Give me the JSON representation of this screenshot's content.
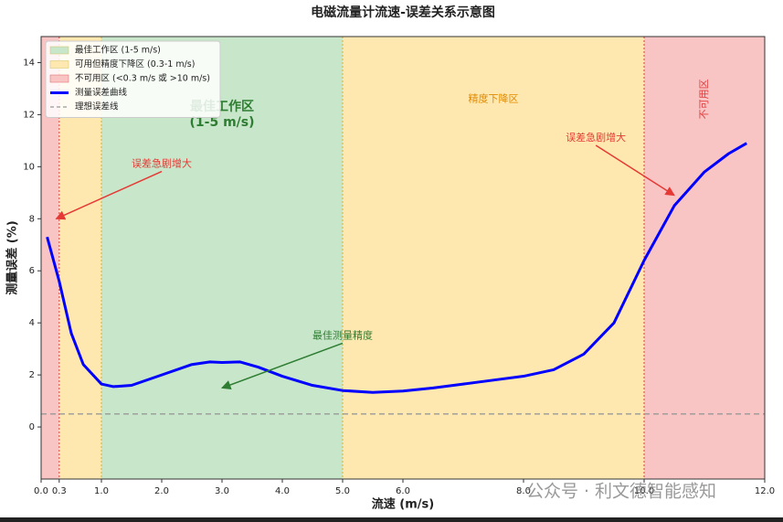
{
  "chart_data": {
    "type": "line",
    "title": "电磁流量计流速-误差关系示意图",
    "x_label": "流速 (m/s)",
    "y_label": "测量误差 (%)",
    "xlim": [
      0,
      12
    ],
    "ylim": [
      -2,
      15
    ],
    "xticks": [
      {
        "value": 0,
        "label": "0.0"
      },
      0.3,
      {
        "value": 1,
        "label": "1.0"
      },
      {
        "value": 2,
        "label": "2.0"
      },
      {
        "value": 3,
        "label": "3.0"
      },
      {
        "value": 4,
        "label": "4.0"
      },
      {
        "value": 5,
        "label": "5.0"
      },
      {
        "value": 6,
        "label": "6.0"
      },
      {
        "value": 8,
        "label": "8.0"
      },
      {
        "value": 10,
        "label": "10.0"
      },
      {
        "value": 12,
        "label": "12.0"
      }
    ],
    "yticks": [
      0,
      2,
      4,
      6,
      8,
      10,
      12,
      14
    ],
    "x": [
      0.1,
      0.3,
      0.5,
      0.7,
      1.0,
      1.2,
      1.5,
      2.0,
      2.5,
      2.8,
      3.0,
      3.3,
      3.6,
      4.0,
      4.5,
      5.0,
      5.5,
      6.0,
      6.5,
      7.0,
      7.5,
      8.0,
      8.5,
      9.0,
      9.5,
      10.0,
      10.5,
      11.0,
      11.4,
      11.7
    ],
    "series": [
      {
        "name": "测量误差曲线",
        "color": "#0000ff",
        "values": [
          7.3,
          5.6,
          3.6,
          2.4,
          1.65,
          1.55,
          1.6,
          2.0,
          2.4,
          2.5,
          2.48,
          2.5,
          2.3,
          1.95,
          1.6,
          1.4,
          1.33,
          1.38,
          1.5,
          1.65,
          1.8,
          1.95,
          2.2,
          2.8,
          4.0,
          6.4,
          8.5,
          9.8,
          10.5,
          10.9
        ]
      }
    ],
    "reference_line": {
      "name": "理想误差线",
      "value": 0.5,
      "color": "#999999"
    },
    "regions": [
      {
        "name": "最佳工作区 (1-5 m/s)",
        "color": "#c8e6c9",
        "edge": "#d4c060",
        "spans": [
          [
            1,
            5
          ]
        ]
      },
      {
        "name": "可用但精度下降区 (0.3-1 m/s)",
        "color": "#ffe8b0",
        "edge": "#d4c060",
        "spans": [
          [
            0.3,
            1
          ],
          [
            5,
            10
          ]
        ]
      },
      {
        "name": "不可用区 (<0.3 m/s 或 >10 m/s)",
        "color": "#f9c4c4",
        "edge": "#e06060",
        "spans": [
          [
            0,
            0.3
          ],
          [
            10,
            12
          ]
        ]
      }
    ],
    "region_labels": [
      {
        "lines": [
          "最佳工作区",
          "(1-5 m/s)"
        ],
        "x": 3,
        "y": 12.3,
        "color": "#2e7d32"
      },
      {
        "lines": [
          "精度下降区"
        ],
        "x": 7.5,
        "y": 12.6,
        "color": "#e08a00"
      },
      {
        "lines": [
          "不可用区"
        ],
        "x": 11,
        "y": 12.6,
        "color": "#e04040",
        "rotate": true
      }
    ],
    "annotations": [
      {
        "text": "误差急剧增大",
        "xy": [
          0.25,
          8
        ],
        "xytext": [
          2,
          10.1
        ],
        "color": "#e53935"
      },
      {
        "text": "误差急剧增大",
        "xy": [
          10.5,
          8.9
        ],
        "xytext": [
          9.2,
          11.1
        ],
        "color": "#e53935"
      },
      {
        "text": "最佳测量精度",
        "xy": [
          3,
          1.5
        ],
        "xytext": [
          5,
          3.5
        ],
        "color": "#2e7d32"
      }
    ],
    "legend": "upper left",
    "watermark": "公众号 · 利文德智能感知"
  }
}
